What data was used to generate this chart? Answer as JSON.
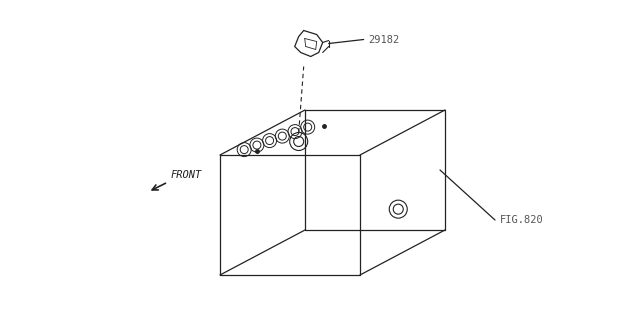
{
  "bg_color": "#ffffff",
  "line_color": "#222222",
  "label_color": "#555555",
  "label_29182": "29182",
  "label_fig": "FIG.820",
  "label_front": "FRONT",
  "lw": 0.9
}
